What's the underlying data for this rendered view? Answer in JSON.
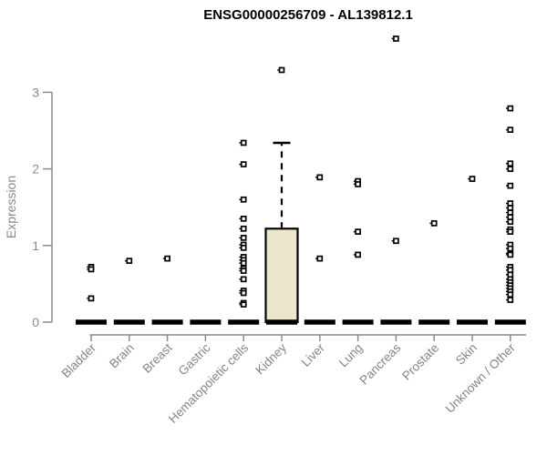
{
  "chart_data": {
    "type": "boxplot",
    "title": "ENSG00000256709 - AL139812.1",
    "xlabel": "",
    "ylabel": "Expression",
    "ylim": [
      0,
      3.75
    ],
    "yticks": [
      0,
      1,
      2,
      3
    ],
    "grid": "off",
    "legend": "none",
    "categories": [
      "Bladder",
      "Brain",
      "Breast",
      "Gastric",
      "Hematopoietic cells",
      "Kidney",
      "Liver",
      "Lung",
      "Pancreas",
      "Prostate",
      "Skin",
      "Unknown / Other"
    ],
    "series": [
      {
        "name": "Bladder",
        "median": 0,
        "q1": 0,
        "q3": 0,
        "whisker_high": 0,
        "points": [
          0.72,
          0.69,
          0.31
        ]
      },
      {
        "name": "Brain",
        "median": 0,
        "q1": 0,
        "q3": 0,
        "whisker_high": 0,
        "points": [
          0.8
        ]
      },
      {
        "name": "Breast",
        "median": 0,
        "q1": 0,
        "q3": 0,
        "whisker_high": 0,
        "points": [
          0.83
        ]
      },
      {
        "name": "Gastric",
        "median": 0,
        "q1": 0,
        "q3": 0,
        "whisker_high": 0,
        "points": []
      },
      {
        "name": "Hematopoietic cells",
        "median": 0,
        "q1": 0,
        "q3": 0,
        "whisker_high": 0,
        "points": [
          2.34,
          2.06,
          1.6,
          1.35,
          1.22,
          1.1,
          1.01,
          0.97,
          0.85,
          0.81,
          0.77,
          0.7,
          0.67,
          0.56,
          0.41,
          0.38,
          0.25,
          0.23
        ]
      },
      {
        "name": "Kidney",
        "median": 0,
        "q1": 0,
        "q3": 1.22,
        "whisker_high": 2.34,
        "points": [
          3.29
        ]
      },
      {
        "name": "Liver",
        "median": 0,
        "q1": 0,
        "q3": 0,
        "whisker_high": 0,
        "points": [
          1.89,
          0.83
        ]
      },
      {
        "name": "Lung",
        "median": 0,
        "q1": 0,
        "q3": 0,
        "whisker_high": 0,
        "points": [
          1.84,
          1.8,
          1.18,
          0.88
        ]
      },
      {
        "name": "Pancreas",
        "median": 0,
        "q1": 0,
        "q3": 0,
        "whisker_high": 0,
        "points": [
          3.7,
          1.06
        ]
      },
      {
        "name": "Prostate",
        "median": 0,
        "q1": 0,
        "q3": 0,
        "whisker_high": 0,
        "points": [
          1.29
        ]
      },
      {
        "name": "Skin",
        "median": 0,
        "q1": 0,
        "q3": 0,
        "whisker_high": 0,
        "points": [
          1.87
        ]
      },
      {
        "name": "Unknown / Other",
        "median": 0,
        "q1": 0,
        "q3": 0,
        "whisker_high": 0,
        "points": [
          2.79,
          2.51,
          2.07,
          2.0,
          1.78,
          1.55,
          1.49,
          1.43,
          1.37,
          1.31,
          1.21,
          1.18,
          1.01,
          0.96,
          0.9,
          0.88,
          0.72,
          0.68,
          0.62,
          0.56,
          0.52,
          0.48,
          0.44,
          0.4,
          0.36,
          0.29
        ]
      }
    ],
    "colors": {
      "box_fill": "#ece6ca",
      "box_stroke": "#000000",
      "median_bar": "#000000",
      "point_stroke": "#000000",
      "point_fill": "#ffffff",
      "axis": "#8a8a8a",
      "tick_label": "#8a8a8a",
      "title": "#000000"
    }
  }
}
